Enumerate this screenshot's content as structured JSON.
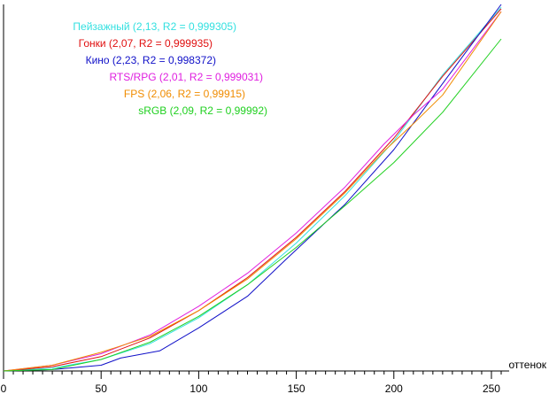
{
  "chart_data": {
    "type": "line",
    "xlabel": "оттенок",
    "ylabel": "",
    "xlim": [
      0,
      255
    ],
    "ylim": [
      0,
      255
    ],
    "xticks": [
      0,
      50,
      100,
      150,
      200,
      250
    ],
    "grid": false,
    "legend_placement": "top-left",
    "series": [
      {
        "name": "Пейзажный (2,13, R2 = 0,999305)",
        "color": "#33e0e0",
        "x": [
          0,
          25,
          50,
          75,
          100,
          125,
          150,
          175,
          200,
          225,
          255
        ],
        "y": [
          0,
          2,
          8,
          19,
          37,
          60,
          89,
          122,
          160,
          206,
          253
        ]
      },
      {
        "name": "Гонки (2,07, R2 = 0,999935)",
        "color": "#e01010",
        "x": [
          0,
          25,
          50,
          75,
          100,
          125,
          150,
          175,
          200,
          225,
          255
        ],
        "y": [
          0,
          3,
          10,
          23,
          42,
          65,
          93,
          125,
          162,
          205,
          252
        ]
      },
      {
        "name": "Кино (2,23, R2 = 0,998372)",
        "color": "#1010c8",
        "x": [
          0,
          25,
          50,
          60,
          80,
          100,
          125,
          145,
          160,
          175,
          200,
          225,
          255
        ],
        "y": [
          0,
          1,
          4,
          9,
          14,
          30,
          52,
          78,
          97,
          116,
          154,
          200,
          255
        ]
      },
      {
        "name": "RTS/RPG (2,01, R2 = 0,999031)",
        "color": "#e020e0",
        "x": [
          0,
          25,
          50,
          75,
          100,
          125,
          150,
          175,
          195,
          210,
          225,
          255
        ],
        "y": [
          0,
          4,
          12,
          25,
          45,
          68,
          96,
          128,
          158,
          178,
          196,
          250
        ]
      },
      {
        "name": "FPS (2,06, R2 = 0,99915)",
        "color": "#f08c00",
        "x": [
          0,
          25,
          50,
          75,
          100,
          125,
          150,
          175,
          195,
          210,
          225,
          255
        ],
        "y": [
          0,
          4,
          13,
          24,
          42,
          64,
          92,
          124,
          153,
          172,
          192,
          250
        ]
      },
      {
        "name": "sRGB (2,09, R2 = 0,99992)",
        "color": "#20d020",
        "x": [
          0,
          25,
          50,
          75,
          100,
          125,
          150,
          175,
          200,
          225,
          255
        ],
        "y": [
          0,
          1,
          8,
          20,
          38,
          60,
          86,
          115,
          145,
          180,
          231
        ]
      }
    ]
  }
}
